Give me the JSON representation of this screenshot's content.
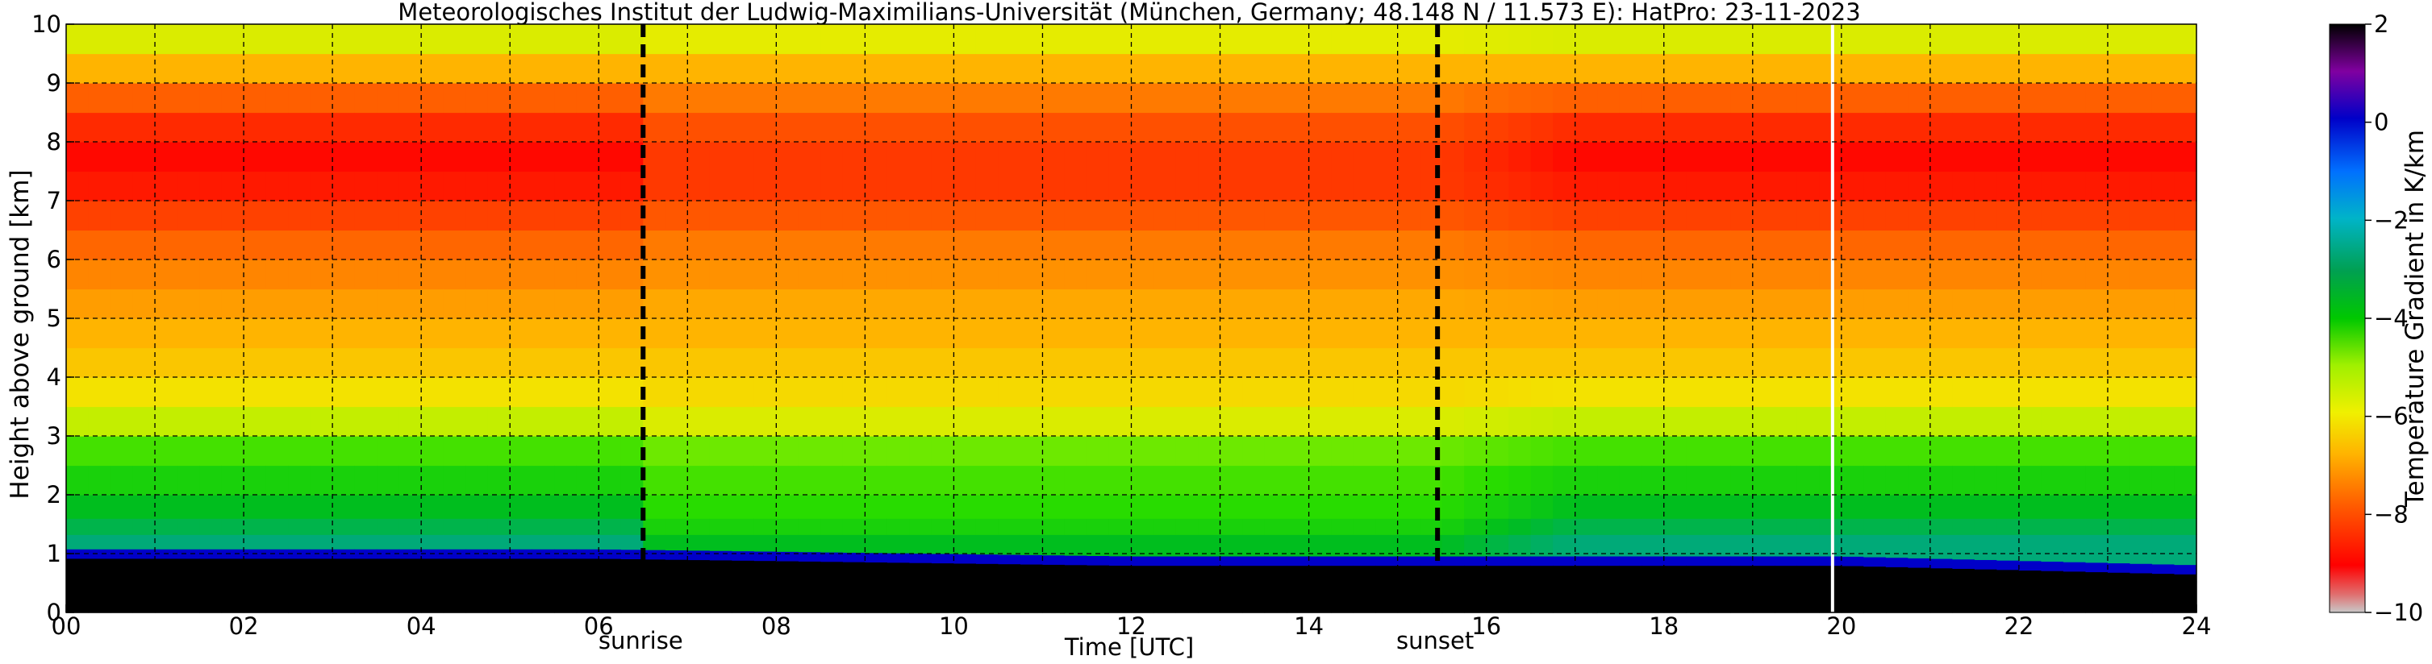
{
  "chart_data": {
    "type": "heatmap",
    "title": "Meteorologisches Institut der Ludwig-Maximilians-Universität (München, Germany; 48.148 N / 11.573 E):    HatPro: 23-11-2023",
    "xlabel": "Time [UTC]",
    "ylabel": "Height above ground [km]",
    "xlim": [
      0,
      24
    ],
    "ylim": [
      0,
      10
    ],
    "x_ticks": [
      "00",
      "02",
      "04",
      "06",
      "08",
      "10",
      "12",
      "14",
      "16",
      "18",
      "20",
      "22",
      "24"
    ],
    "y_ticks": [
      "0",
      "1",
      "2",
      "3",
      "4",
      "5",
      "6",
      "7",
      "8",
      "9",
      "10"
    ],
    "grid": true,
    "colorbar": {
      "label": "Temperature Gradient in K/km",
      "range": [
        -10,
        2
      ],
      "ticks": [
        "−10",
        "−8",
        "−6",
        "−4",
        "−2",
        "0",
        "2"
      ]
    },
    "events": [
      {
        "label": "sunrise",
        "x": 6.5
      },
      {
        "label": "sunset",
        "x": 15.45
      }
    ],
    "data_gap_x": 19.9,
    "profile": {
      "comment_free": true,
      "heights_km": [
        0.3,
        0.75,
        1.0,
        1.2,
        1.45,
        1.75,
        2.25,
        2.75,
        3.25,
        3.75,
        4.25,
        4.75,
        5.25,
        5.75,
        6.25,
        6.75,
        7.25,
        7.75,
        8.25,
        8.75,
        9.25,
        9.75
      ],
      "gradient_night": [
        2.0,
        2.0,
        0.0,
        -3.0,
        -3.5,
        -4.0,
        -4.5,
        -5.0,
        -6.0,
        -6.5,
        -6.8,
        -7.0,
        -7.2,
        -7.4,
        -7.7,
        -8.2,
        -8.7,
        -8.9,
        -8.5,
        -7.8,
        -7.0,
        -6.2
      ],
      "gradient_day": [
        2.0,
        2.0,
        0.0,
        -4.0,
        -4.5,
        -4.8,
        -5.0,
        -5.3,
        -6.2,
        -6.6,
        -6.8,
        -7.0,
        -7.1,
        -7.3,
        -7.5,
        -7.9,
        -8.3,
        -8.3,
        -8.0,
        -7.5,
        -7.0,
        -6.3
      ]
    }
  }
}
